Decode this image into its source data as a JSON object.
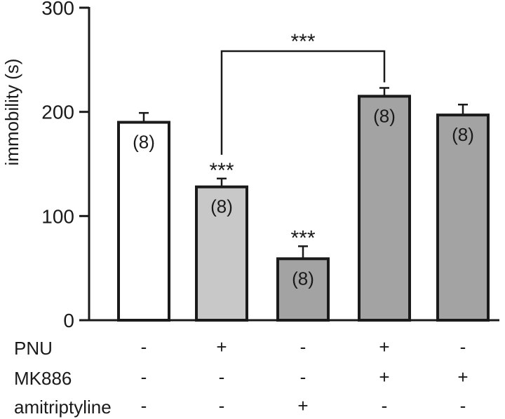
{
  "chart_data": {
    "type": "bar",
    "title": "",
    "ylabel": "immobility (s)",
    "xlabel": "",
    "ylim": [
      0,
      300
    ],
    "yticks": [
      0,
      100,
      200,
      300
    ],
    "grid": false,
    "legend": "none",
    "values": [
      190,
      128,
      59,
      215,
      197
    ],
    "errors": [
      9,
      8,
      12,
      8,
      10
    ],
    "n_labels": [
      "(8)",
      "(8)",
      "(8)",
      "(8)",
      "(8)"
    ],
    "significance": [
      "",
      "***",
      "***",
      "",
      ""
    ],
    "bar_colors": [
      "#ffffff",
      "#c8c8c8",
      "#a3a3a3",
      "#a3a3a3",
      "#a3a3a3"
    ],
    "comparison": {
      "from": 1,
      "to": 3,
      "label": "***"
    },
    "treatments": [
      {
        "name": "PNU",
        "signs": [
          "-",
          "+",
          "-",
          "+",
          "-"
        ]
      },
      {
        "name": "MK886",
        "signs": [
          "-",
          "-",
          "-",
          "+",
          "+"
        ]
      },
      {
        "name": "amitriptyline",
        "signs": [
          "-",
          "-",
          "+",
          "-",
          "-"
        ]
      }
    ]
  }
}
